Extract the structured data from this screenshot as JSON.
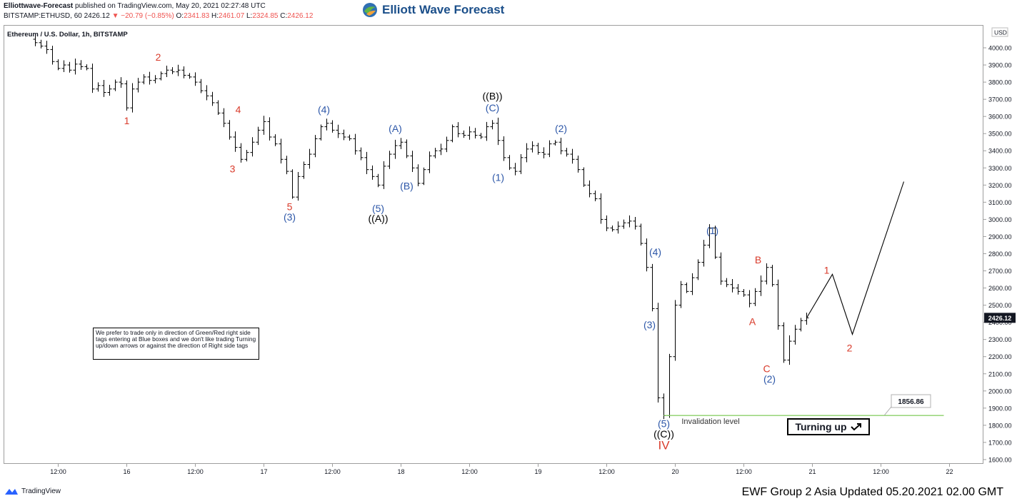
{
  "header": {
    "publisher": "Elliottwave-Forecast",
    "published_text": "published on TradingView.com, May 20, 2021 02:27:48 UTC",
    "symbol_line": "BITSTAMP:ETHUSD, 60",
    "last_price": "2426.12",
    "change": "−20.79 (−0.85%)",
    "ohlc": [
      {
        "k": "O:",
        "v": "2341.83"
      },
      {
        "k": "H:",
        "v": "2461.07"
      },
      {
        "k": "L:",
        "v": "2324.85"
      },
      {
        "k": "C:",
        "v": "2426.12"
      }
    ]
  },
  "brand": {
    "name": "Elliott Wave Forecast"
  },
  "chart_title": "Ethereum / U.S. Dollar, 1h, BITSTAMP",
  "note_box": "We prefer to trade only in direction of Green/Red right side tags entering at Blue boxes and we don't like trading Turning up/down arrows or against the direction of Right side tags",
  "turning_label": "Turning up",
  "invalidation_label": "Invalidation level",
  "invalidation_value": "1856.86",
  "footer_text": "EWF Group 2 Asia Updated 05.20.2021 02.00 GMT",
  "tradingview_label": "TradingView",
  "colors": {
    "red": "#d93b2b",
    "blue": "#2d57a8",
    "black": "#000000",
    "green": "#8bd16a",
    "price_bg": "#131722"
  },
  "chart_data": {
    "type": "ohlc",
    "currency": "USD",
    "y_ticks": [
      4000,
      3900,
      3800,
      3700,
      3600,
      3500,
      3400,
      3300,
      3200,
      3100,
      3000,
      2900,
      2800,
      2700,
      2600,
      2500,
      2400,
      2300,
      2200,
      2100,
      2000,
      1900,
      1800,
      1700,
      1600
    ],
    "y_tick_labels": [
      "4000.00",
      "3900.00",
      "3800.00",
      "3700.00",
      "3600.00",
      "3500.00",
      "3400.00",
      "3300.00",
      "3200.00",
      "3100.00",
      "3000.00",
      "2900.00",
      "2800.00",
      "2700.00",
      "2600.00",
      "2500.00",
      "2400.00",
      "2300.00",
      "2200.00",
      "2100.00",
      "2000.00",
      "1900.00",
      "1800.00",
      "1700.00",
      "1600.00"
    ],
    "x_tick_labels": [
      "12:00",
      "16",
      "12:00",
      "17",
      "12:00",
      "18",
      "12:00",
      "19",
      "12:00",
      "20",
      "12:00",
      "21",
      "12:00",
      "22"
    ],
    "x_tick_hours": [
      -12,
      0,
      12,
      24,
      36,
      48,
      60,
      72,
      84,
      96,
      108,
      120,
      132,
      144
    ],
    "price_path": [
      [
        -17,
        4050
      ],
      [
        -16,
        4030
      ],
      [
        -15,
        4010
      ],
      [
        -14,
        3990
      ],
      [
        -13,
        3920
      ],
      [
        -12,
        3880
      ],
      [
        -11,
        3900
      ],
      [
        -10,
        3870
      ],
      [
        -9,
        3905
      ],
      [
        -8,
        3890
      ],
      [
        -7,
        3880
      ],
      [
        -6,
        3760
      ],
      [
        -5,
        3780
      ],
      [
        -4,
        3740
      ],
      [
        -3,
        3760
      ],
      [
        -2,
        3800
      ],
      [
        -1,
        3790
      ],
      [
        0,
        3650
      ],
      [
        1,
        3760
      ],
      [
        2,
        3800
      ],
      [
        3,
        3830
      ],
      [
        4,
        3810
      ],
      [
        5,
        3820
      ],
      [
        6,
        3850
      ],
      [
        7,
        3870
      ],
      [
        8,
        3860
      ],
      [
        9,
        3870
      ],
      [
        10,
        3840
      ],
      [
        11,
        3830
      ],
      [
        12,
        3800
      ],
      [
        13,
        3750
      ],
      [
        14,
        3720
      ],
      [
        15,
        3680
      ],
      [
        16,
        3620
      ],
      [
        17,
        3560
      ],
      [
        18,
        3480
      ],
      [
        19,
        3420
      ],
      [
        20,
        3350
      ],
      [
        21,
        3390
      ],
      [
        22,
        3450
      ],
      [
        23,
        3520
      ],
      [
        24,
        3570
      ],
      [
        25,
        3480
      ],
      [
        26,
        3440
      ],
      [
        27,
        3350
      ],
      [
        28,
        3280
      ],
      [
        29,
        3130
      ],
      [
        30,
        3250
      ],
      [
        31,
        3320
      ],
      [
        32,
        3380
      ],
      [
        33,
        3470
      ],
      [
        34,
        3540
      ],
      [
        35,
        3560
      ],
      [
        36,
        3520
      ],
      [
        37,
        3500
      ],
      [
        38,
        3480
      ],
      [
        39,
        3470
      ],
      [
        40,
        3400
      ],
      [
        41,
        3360
      ],
      [
        42,
        3290
      ],
      [
        43,
        3250
      ],
      [
        44,
        3200
      ],
      [
        45,
        3310
      ],
      [
        46,
        3380
      ],
      [
        47,
        3430
      ],
      [
        48,
        3450
      ],
      [
        49,
        3370
      ],
      [
        50,
        3300
      ],
      [
        51,
        3210
      ],
      [
        52,
        3290
      ],
      [
        53,
        3370
      ],
      [
        54,
        3400
      ],
      [
        55,
        3410
      ],
      [
        56,
        3460
      ],
      [
        57,
        3540
      ],
      [
        58,
        3500
      ],
      [
        59,
        3490
      ],
      [
        60,
        3510
      ],
      [
        61,
        3490
      ],
      [
        62,
        3480
      ],
      [
        63,
        3540
      ],
      [
        64,
        3560
      ],
      [
        65,
        3460
      ],
      [
        66,
        3360
      ],
      [
        67,
        3300
      ],
      [
        68,
        3280
      ],
      [
        69,
        3360
      ],
      [
        70,
        3410
      ],
      [
        71,
        3430
      ],
      [
        72,
        3390
      ],
      [
        73,
        3380
      ],
      [
        74,
        3440
      ],
      [
        75,
        3450
      ],
      [
        76,
        3400
      ],
      [
        77,
        3380
      ],
      [
        78,
        3350
      ],
      [
        79,
        3290
      ],
      [
        80,
        3200
      ],
      [
        81,
        3150
      ],
      [
        82,
        3120
      ],
      [
        83,
        3000
      ],
      [
        84,
        2950
      ],
      [
        85,
        2940
      ],
      [
        86,
        2960
      ],
      [
        87,
        2980
      ],
      [
        88,
        2990
      ],
      [
        89,
        2960
      ],
      [
        90,
        2860
      ],
      [
        91,
        2720
      ],
      [
        92,
        2480
      ],
      [
        93,
        1960
      ],
      [
        94,
        1856
      ],
      [
        95,
        2200
      ],
      [
        96,
        2500
      ],
      [
        97,
        2620
      ],
      [
        98,
        2580
      ],
      [
        99,
        2660
      ],
      [
        100,
        2750
      ],
      [
        101,
        2850
      ],
      [
        102,
        2950
      ],
      [
        103,
        2780
      ],
      [
        104,
        2640
      ],
      [
        105,
        2620
      ],
      [
        106,
        2600
      ],
      [
        107,
        2580
      ],
      [
        108,
        2560
      ],
      [
        109,
        2510
      ],
      [
        110,
        2580
      ],
      [
        111,
        2640
      ],
      [
        112,
        2720
      ],
      [
        113,
        2620
      ],
      [
        114,
        2380
      ],
      [
        115,
        2180
      ],
      [
        116,
        2290
      ],
      [
        117,
        2360
      ],
      [
        118,
        2410
      ],
      [
        119,
        2426
      ]
    ],
    "projection": [
      [
        119,
        2426
      ],
      [
        123.5,
        2680
      ],
      [
        127,
        2330
      ],
      [
        136,
        3220
      ]
    ],
    "wave_labels": [
      {
        "text": "2",
        "h": 5.5,
        "y": 3945,
        "color": "red"
      },
      {
        "text": "1",
        "h": 0,
        "y": 3575,
        "color": "red"
      },
      {
        "text": "4",
        "h": 19.5,
        "y": 3640,
        "color": "red"
      },
      {
        "text": "3",
        "h": 18.5,
        "y": 3295,
        "color": "red"
      },
      {
        "text": "5",
        "h": 28.5,
        "y": 3075,
        "color": "red"
      },
      {
        "text": "(3)",
        "h": 28.5,
        "y": 3015,
        "color": "blue"
      },
      {
        "text": "(4)",
        "h": 34.5,
        "y": 3640,
        "color": "blue"
      },
      {
        "text": "(5)",
        "h": 44,
        "y": 3065,
        "color": "blue"
      },
      {
        "text": "((A))",
        "h": 44,
        "y": 3005,
        "color": "black"
      },
      {
        "text": "(A)",
        "h": 47,
        "y": 3530,
        "color": "blue"
      },
      {
        "text": "(B)",
        "h": 49,
        "y": 3195,
        "color": "blue"
      },
      {
        "text": "((B))",
        "h": 64,
        "y": 3720,
        "color": "black"
      },
      {
        "text": "(C)",
        "h": 64,
        "y": 3650,
        "color": "blue"
      },
      {
        "text": "(1)",
        "h": 65,
        "y": 3245,
        "color": "blue"
      },
      {
        "text": "(2)",
        "h": 76,
        "y": 3530,
        "color": "blue"
      },
      {
        "text": "(4)",
        "h": 92.5,
        "y": 2810,
        "color": "blue"
      },
      {
        "text": "(3)",
        "h": 91.5,
        "y": 2385,
        "color": "blue"
      },
      {
        "text": "(1)",
        "h": 102.5,
        "y": 2935,
        "color": "blue"
      },
      {
        "text": "B",
        "h": 110.5,
        "y": 2765,
        "color": "red"
      },
      {
        "text": "A",
        "h": 109.5,
        "y": 2405,
        "color": "red"
      },
      {
        "text": "C",
        "h": 112,
        "y": 2130,
        "color": "red"
      },
      {
        "text": "(2)",
        "h": 112.5,
        "y": 2070,
        "color": "blue"
      },
      {
        "text": "1",
        "h": 122.5,
        "y": 2705,
        "color": "red"
      },
      {
        "text": "2",
        "h": 126.5,
        "y": 2250,
        "color": "red"
      },
      {
        "text": "(5)",
        "h": 94,
        "y": 1810,
        "color": "blue"
      },
      {
        "text": "((C))",
        "h": 94,
        "y": 1750,
        "color": "black"
      },
      {
        "text": "IV",
        "h": 94,
        "y": 1680,
        "color": "red"
      }
    ],
    "invalidation": {
      "value": 1856.86,
      "from_h": 94,
      "to_h": 143
    }
  }
}
